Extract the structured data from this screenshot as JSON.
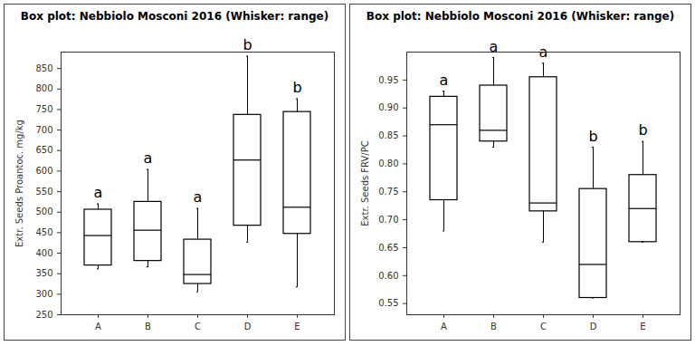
{
  "chart_data": [
    {
      "type": "box",
      "title": "Box plot: Nebbiolo Mosconi 2016 (Whisker: range)",
      "y_label": "Extr. Seeds Proantoc. mg/kg",
      "categories": [
        "A",
        "B",
        "C",
        "D",
        "E"
      ],
      "min": [
        362,
        367,
        306,
        427,
        318
      ],
      "q1": [
        370,
        381,
        325,
        467,
        447
      ],
      "median": [
        443,
        456,
        348,
        627,
        512
      ],
      "q3": [
        506,
        525,
        433,
        737,
        744
      ],
      "max": [
        520,
        604,
        509,
        880,
        776
      ],
      "annotations": [
        "a",
        "a",
        "a",
        "b",
        "b"
      ],
      "color": "#000000",
      "ylim": [
        250,
        890
      ],
      "yticks": [
        250,
        300,
        350,
        400,
        450,
        500,
        550,
        600,
        650,
        700,
        750,
        800,
        850
      ],
      "grid": false
    },
    {
      "type": "box",
      "title": "Box plot: Nebbiolo Mosconi 2016 (Whisker: range)",
      "y_label": "Extr. Seeds FRV/PC",
      "categories": [
        "A",
        "B",
        "C",
        "D",
        "E"
      ],
      "min": [
        0.68,
        0.83,
        0.66,
        0.56,
        0.66
      ],
      "q1": [
        0.735,
        0.84,
        0.715,
        0.56,
        0.66
      ],
      "median": [
        0.87,
        0.86,
        0.73,
        0.62,
        0.72
      ],
      "q3": [
        0.92,
        0.94,
        0.955,
        0.755,
        0.78
      ],
      "max": [
        0.93,
        0.99,
        0.98,
        0.83,
        0.84
      ],
      "annotations": [
        "a",
        "a",
        "a",
        "b",
        "b"
      ],
      "color": "#000000",
      "ylim": [
        0.53,
        1.0
      ],
      "yticks": [
        0.55,
        0.6,
        0.65,
        0.7,
        0.75,
        0.8,
        0.85,
        0.9,
        0.95
      ],
      "grid": false
    }
  ]
}
